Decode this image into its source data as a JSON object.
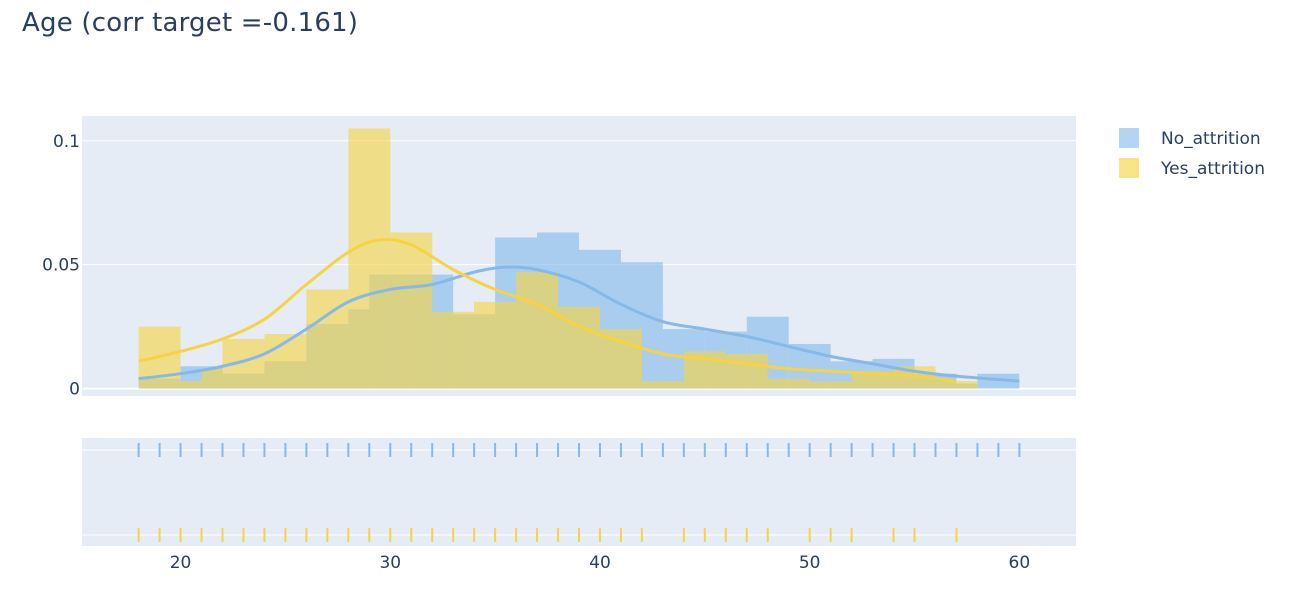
{
  "title": "Age (corr target =-0.161)",
  "colors": {
    "no_attrition": "#85b9ea",
    "yes_attrition": "#f7d342",
    "plot_bg": "#e5ecf6",
    "grid": "#ffffff",
    "text": "#2a3f5f"
  },
  "chart_data": {
    "type": "histogram",
    "x_ticks": [
      20,
      30,
      40,
      50,
      60
    ],
    "y_ticks": [
      0,
      0.05,
      0.1
    ],
    "y_tick_labels": [
      "0",
      "0.05",
      "0.1"
    ],
    "xlim": [
      15.3,
      62.7
    ],
    "ylim": [
      -0.003,
      0.11
    ],
    "bin_width": 2,
    "series": [
      {
        "name": "No_attrition",
        "color": "#85b9ea",
        "bins": [
          {
            "x0": 18,
            "value": 0.004
          },
          {
            "x0": 20,
            "value": 0.009
          },
          {
            "x0": 22,
            "value": 0.006
          },
          {
            "x0": 24,
            "value": 0.011
          },
          {
            "x0": 26,
            "value": 0.026
          },
          {
            "x0": 28,
            "value": 0.032
          },
          {
            "x0": 29,
            "value": 0.046
          },
          {
            "x0": 31,
            "value": 0.046
          },
          {
            "x0": 33,
            "value": 0.03
          },
          {
            "x0": 35,
            "value": 0.061
          },
          {
            "x0": 37,
            "value": 0.063
          },
          {
            "x0": 39,
            "value": 0.056
          },
          {
            "x0": 41,
            "value": 0.051
          },
          {
            "x0": 43,
            "value": 0.024
          },
          {
            "x0": 45,
            "value": 0.023
          },
          {
            "x0": 47,
            "value": 0.029
          },
          {
            "x0": 49,
            "value": 0.018
          },
          {
            "x0": 51,
            "value": 0.011
          },
          {
            "x0": 53,
            "value": 0.012
          },
          {
            "x0": 55,
            "value": 0.006
          },
          {
            "x0": 57,
            "value": 0.002
          },
          {
            "x0": 58,
            "value": 0.006
          }
        ],
        "kde": [
          [
            18,
            0.004
          ],
          [
            20,
            0.006
          ],
          [
            22,
            0.009
          ],
          [
            24,
            0.014
          ],
          [
            26,
            0.024
          ],
          [
            28,
            0.035
          ],
          [
            30,
            0.04
          ],
          [
            32,
            0.042
          ],
          [
            34,
            0.047
          ],
          [
            35.5,
            0.049
          ],
          [
            37,
            0.048
          ],
          [
            39,
            0.043
          ],
          [
            41,
            0.034
          ],
          [
            43,
            0.027
          ],
          [
            45,
            0.024
          ],
          [
            47,
            0.021
          ],
          [
            49,
            0.017
          ],
          [
            51,
            0.013
          ],
          [
            53,
            0.01
          ],
          [
            55,
            0.007
          ],
          [
            57,
            0.005
          ],
          [
            60,
            0.003
          ]
        ],
        "rug_x": [
          18,
          19,
          20,
          21,
          22,
          23,
          24,
          25,
          26,
          27,
          28,
          29,
          30,
          31,
          32,
          33,
          34,
          35,
          36,
          37,
          38,
          39,
          40,
          41,
          42,
          43,
          44,
          45,
          46,
          47,
          48,
          49,
          50,
          51,
          52,
          53,
          54,
          55,
          56,
          57,
          58,
          59,
          60
        ]
      },
      {
        "name": "Yes_attrition",
        "color": "#f7d342",
        "bins": [
          {
            "x0": 18,
            "value": 0.025
          },
          {
            "x0": 20,
            "value": 0.003
          },
          {
            "x0": 21,
            "value": 0.008
          },
          {
            "x0": 22,
            "value": 0.02
          },
          {
            "x0": 24,
            "value": 0.022
          },
          {
            "x0": 26,
            "value": 0.04
          },
          {
            "x0": 28,
            "value": 0.105
          },
          {
            "x0": 30,
            "value": 0.063
          },
          {
            "x0": 32,
            "value": 0.031
          },
          {
            "x0": 34,
            "value": 0.035
          },
          {
            "x0": 36,
            "value": 0.047
          },
          {
            "x0": 38,
            "value": 0.033
          },
          {
            "x0": 40,
            "value": 0.024
          },
          {
            "x0": 42,
            "value": 0.003
          },
          {
            "x0": 44,
            "value": 0.015
          },
          {
            "x0": 46,
            "value": 0.014
          },
          {
            "x0": 48,
            "value": 0.004
          },
          {
            "x0": 50,
            "value": 0.003
          },
          {
            "x0": 52,
            "value": 0.007
          },
          {
            "x0": 54,
            "value": 0.009
          },
          {
            "x0": 56,
            "value": 0.003
          }
        ],
        "kde": [
          [
            18,
            0.011
          ],
          [
            20,
            0.015
          ],
          [
            22,
            0.02
          ],
          [
            24,
            0.028
          ],
          [
            26,
            0.042
          ],
          [
            28,
            0.055
          ],
          [
            29.5,
            0.06
          ],
          [
            31,
            0.058
          ],
          [
            33,
            0.048
          ],
          [
            35,
            0.04
          ],
          [
            37,
            0.034
          ],
          [
            39,
            0.025
          ],
          [
            41,
            0.019
          ],
          [
            43,
            0.014
          ],
          [
            45,
            0.012
          ],
          [
            47,
            0.01
          ],
          [
            49,
            0.008
          ],
          [
            51,
            0.007
          ],
          [
            53,
            0.006
          ],
          [
            55,
            0.005
          ],
          [
            57,
            0.003
          ]
        ],
        "rug_x": [
          18,
          19,
          20,
          21,
          22,
          23,
          24,
          25,
          26,
          27,
          28,
          29,
          30,
          31,
          32,
          33,
          34,
          35,
          36,
          37,
          38,
          39,
          40,
          41,
          42,
          44,
          45,
          46,
          47,
          48,
          50,
          51,
          52,
          54,
          55,
          57
        ]
      }
    ],
    "legend_position": "top-right"
  }
}
